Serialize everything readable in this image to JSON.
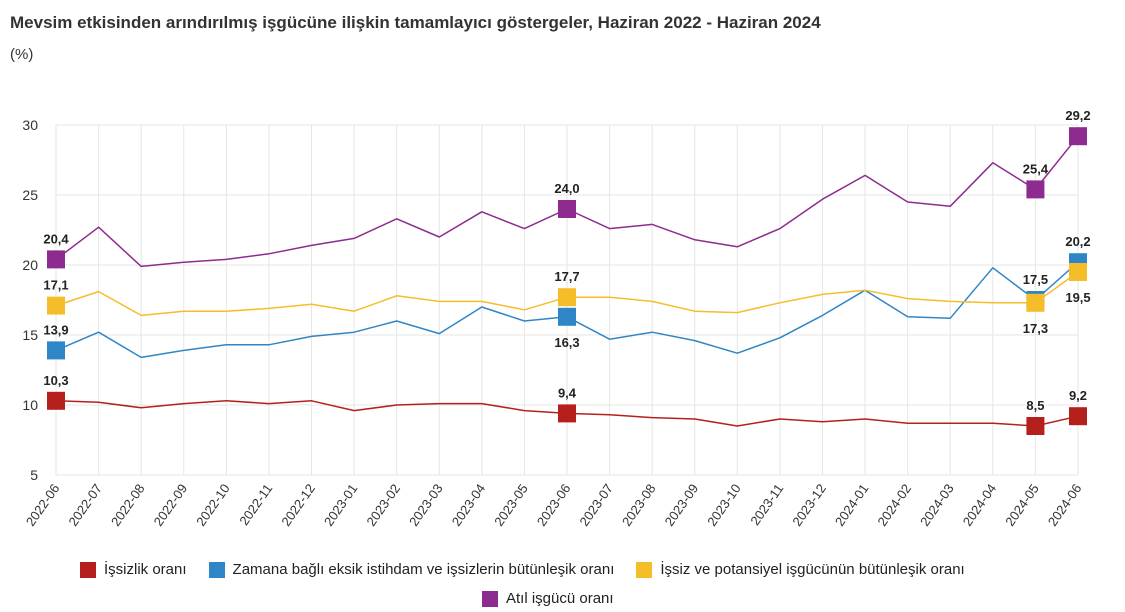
{
  "header": {
    "title": "Mevsim etkisinden arındırılmış işgücüne ilişkin tamamlayıcı göstergeler, Haziran 2022 - Haziran 2024",
    "unit": "(%)"
  },
  "chart_data": {
    "type": "line",
    "title": "Mevsim etkisinden arındırılmış işgücüne ilişkin tamamlayıcı göstergeler, Haziran 2022 - Haziran 2024",
    "ylabel": "(%)",
    "xlabel": "",
    "ylim": [
      5,
      30
    ],
    "yticks": [
      5,
      10,
      15,
      20,
      25,
      30
    ],
    "grid": true,
    "legend_position": "bottom",
    "categories": [
      "2022-06",
      "2022-07",
      "2022-08",
      "2022-09",
      "2022-10",
      "2022-11",
      "2022-12",
      "2023-01",
      "2023-02",
      "2023-03",
      "2023-04",
      "2023-05",
      "2023-06",
      "2023-07",
      "2023-08",
      "2023-09",
      "2023-10",
      "2023-11",
      "2023-12",
      "2024-01",
      "2024-02",
      "2024-03",
      "2024-04",
      "2024-05",
      "2024-06"
    ],
    "series": [
      {
        "name": "İşsizlik oranı",
        "color": "#b5201d",
        "values": [
          10.3,
          10.2,
          9.8,
          10.1,
          10.3,
          10.1,
          10.3,
          9.6,
          10.0,
          10.1,
          10.1,
          9.6,
          9.4,
          9.3,
          9.1,
          9.0,
          8.5,
          9.0,
          8.8,
          9.0,
          8.7,
          8.7,
          8.7,
          8.5,
          9.2
        ],
        "labels": [
          {
            "index": 0,
            "text": "10,3",
            "pos": "above"
          },
          {
            "index": 12,
            "text": "9,4",
            "pos": "above"
          },
          {
            "index": 23,
            "text": "8,5",
            "pos": "above"
          },
          {
            "index": 24,
            "text": "9,2",
            "pos": "above"
          }
        ]
      },
      {
        "name": "Zamana bağlı eksik istihdam ve işsizlerin bütünleşik oranı",
        "color": "#2f86c6",
        "values": [
          13.9,
          15.2,
          13.4,
          13.9,
          14.3,
          14.3,
          14.9,
          15.2,
          16.0,
          15.1,
          17.0,
          16.0,
          16.3,
          14.7,
          15.2,
          14.6,
          13.7,
          14.8,
          16.4,
          18.2,
          16.3,
          16.2,
          19.8,
          17.5,
          20.2
        ],
        "labels": [
          {
            "index": 0,
            "text": "13,9",
            "pos": "above"
          },
          {
            "index": 12,
            "text": "16,3",
            "pos": "below"
          },
          {
            "index": 23,
            "text": "17,5",
            "pos": "above"
          },
          {
            "index": 24,
            "text": "20,2",
            "pos": "above"
          }
        ]
      },
      {
        "name": "İşsiz ve potansiyel işgücünün bütünleşik oranı",
        "color": "#f6bd2a",
        "values": [
          17.1,
          18.1,
          16.4,
          16.7,
          16.7,
          16.9,
          17.2,
          16.7,
          17.8,
          17.4,
          17.4,
          16.8,
          17.7,
          17.7,
          17.4,
          16.7,
          16.6,
          17.3,
          17.9,
          18.2,
          17.6,
          17.4,
          17.3,
          17.3,
          19.5
        ],
        "labels": [
          {
            "index": 0,
            "text": "17,1",
            "pos": "above"
          },
          {
            "index": 12,
            "text": "17,7",
            "pos": "above"
          },
          {
            "index": 23,
            "text": "17,3",
            "pos": "below"
          },
          {
            "index": 24,
            "text": "19,5",
            "pos": "below"
          }
        ]
      },
      {
        "name": "Atıl işgücü oranı",
        "color": "#8e2b8e",
        "values": [
          20.4,
          22.7,
          19.9,
          20.2,
          20.4,
          20.8,
          21.4,
          21.9,
          23.3,
          22.0,
          23.8,
          22.6,
          24.0,
          22.6,
          22.9,
          21.8,
          21.3,
          22.6,
          24.7,
          26.4,
          24.5,
          24.2,
          27.3,
          25.4,
          29.2
        ],
        "labels": [
          {
            "index": 0,
            "text": "20,4",
            "pos": "above"
          },
          {
            "index": 12,
            "text": "24,0",
            "pos": "above"
          },
          {
            "index": 23,
            "text": "25,4",
            "pos": "above"
          },
          {
            "index": 24,
            "text": "29,2",
            "pos": "above"
          }
        ]
      }
    ]
  }
}
